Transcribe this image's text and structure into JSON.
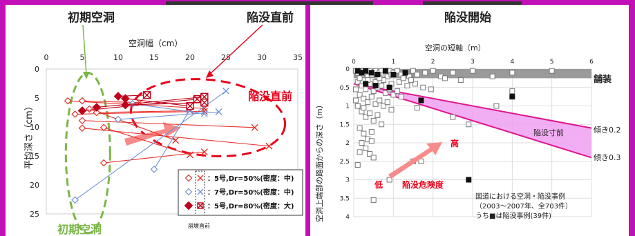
{
  "headings": {
    "left": "初期空洞",
    "center": "陥没直前",
    "right": "陥没開始"
  },
  "chart_data": [
    {
      "type": "scatter",
      "title": "",
      "xlabel": "空洞幅（cm）",
      "ylabel": "平均深さ（cm）",
      "xlim": [
        0,
        35
      ],
      "ylim": [
        0,
        25
      ],
      "y_inverted": true,
      "x_ticks": [
        0,
        5,
        10,
        15,
        20,
        25,
        30,
        35
      ],
      "y_ticks": [
        0,
        5,
        10,
        15,
        20,
        25
      ],
      "legend_position": "bottom-right",
      "legend_note": "崩壊直前",
      "colors": {
        "series1": "#e8302a",
        "series2": "#6f95d8",
        "series3": "#c0001a",
        "initial": "#7ab648",
        "collapse": "#e8001a"
      },
      "series": [
        {
          "name": "：5号,Dr=50%(密度：中)",
          "marker_start": "diamond-open",
          "marker_end": "x",
          "color": "#e8302a",
          "lines": [
            [
              [
                3,
                5.5
              ],
              [
                22,
                6.8
              ]
            ],
            [
              [
                4,
                7.8
              ],
              [
                22,
                7.3
              ]
            ],
            [
              [
                5,
                5.5
              ],
              [
                13,
                5.8
              ]
            ],
            [
              [
                5,
                8.9
              ],
              [
                29,
                10.1
              ]
            ],
            [
              [
                5,
                10.2
              ],
              [
                31,
                13.3
              ]
            ],
            [
              [
                6,
                6.9
              ],
              [
                18,
                12.3
              ]
            ],
            [
              [
                7,
                7.5
              ],
              [
                20,
                7.2
              ]
            ],
            [
              [
                8,
                10.1
              ],
              [
                20,
                14.8
              ]
            ],
            [
              [
                8,
                16.2
              ],
              [
                22,
                14.3
              ]
            ]
          ]
        },
        {
          "name": "：7号,Dr=50%(密度：中)",
          "marker_start": "diamond-open",
          "marker_end": "x",
          "color": "#6f95d8",
          "lines": [
            [
              [
                4,
                22.6
              ],
              [
                25,
                3.8
              ]
            ],
            [
              [
                10,
                8.7
              ],
              [
                24,
                7.4
              ]
            ],
            [
              [
                12,
                6.0
              ],
              [
                22,
                7.7
              ]
            ],
            [
              [
                15,
                17.3
              ],
              [
                20,
                7.0
              ]
            ]
          ]
        },
        {
          "name": "：5号,Dr=80%(密度：大)",
          "marker_start": "diamond-filled",
          "marker_end": "x-box",
          "color": "#c0001a",
          "lines": [
            [
              [
                5,
                7.2
              ],
              [
                21,
                5.2
              ]
            ],
            [
              [
                7,
                6.6
              ],
              [
                22,
                4.8
              ]
            ],
            [
              [
                10,
                4.7
              ],
              [
                14,
                4.5
              ]
            ],
            [
              [
                11,
                5.1
              ],
              [
                20,
                6.4
              ]
            ],
            [
              [
                11,
                6.2
              ],
              [
                22,
                5.8
              ]
            ]
          ]
        }
      ],
      "annotations": [
        {
          "text": "初期空洞",
          "color": "#7ab648"
        },
        {
          "text": "陥没直前",
          "color": "#e8001a"
        }
      ]
    },
    {
      "type": "scatter",
      "title": "",
      "xlabel": "空洞の短軸（m）",
      "ylabel": "空洞上端部の路面からの深さ（m）",
      "xlim": [
        0,
        6
      ],
      "ylim": [
        0,
        4
      ],
      "y_inverted": true,
      "x_ticks": [
        0,
        1,
        2,
        3,
        4,
        5,
        6
      ],
      "y_ticks": [
        0,
        0.5,
        1,
        1.5,
        2,
        2.5,
        3,
        3.5,
        4
      ],
      "y_tick_labels": [
        "0",
        "0.5",
        "1",
        "1.5",
        "2",
        "2.5",
        "3",
        "3.5",
        "4"
      ],
      "pavement_band": {
        "label": "舗装",
        "y0": 0,
        "y1": 0.25,
        "color": "#9a9a9a"
      },
      "collapse_band": {
        "label": "陥没寸前",
        "color": "#f0a0f0",
        "edge_color": "#e0148c",
        "upper_line": {
          "label": "傾き0.2",
          "x": [
            0,
            6
          ],
          "y": [
            0.4,
            1.6
          ]
        },
        "lower_line": {
          "label": "傾き0.3",
          "x": [
            0,
            6
          ],
          "y": [
            0.4,
            2.4
          ]
        }
      },
      "danger_arrow": {
        "low_label": "低",
        "high_label": "高",
        "label": "陥没危険度"
      },
      "legend_text": [
        "国道における空洞・陥没事例",
        "（2003～2007年、全703件）",
        "うち■は陥没事例(39件)"
      ],
      "series": [
        {
          "name": "空洞事例",
          "marker": "square-open",
          "points": [
            [
              0.05,
              0.05
            ],
            [
              0.1,
              0.1
            ],
            [
              0.15,
              0.05
            ],
            [
              0.2,
              0.15
            ],
            [
              0.25,
              0.05
            ],
            [
              0.3,
              0.1
            ],
            [
              0.35,
              0.2
            ],
            [
              0.4,
              0.05
            ],
            [
              0.45,
              0.15
            ],
            [
              0.5,
              0.1
            ],
            [
              0.55,
              0.05
            ],
            [
              0.6,
              0.2
            ],
            [
              0.65,
              0.1
            ],
            [
              0.7,
              0.05
            ],
            [
              0.75,
              0.15
            ],
            [
              0.8,
              0.1
            ],
            [
              0.85,
              0.2
            ],
            [
              0.9,
              0.05
            ],
            [
              0.95,
              0.15
            ],
            [
              1.0,
              0.1
            ],
            [
              1.1,
              0.05
            ],
            [
              1.2,
              0.15
            ],
            [
              1.3,
              0.1
            ],
            [
              1.4,
              0.2
            ],
            [
              1.5,
              0.05
            ],
            [
              1.6,
              0.15
            ],
            [
              1.8,
              0.1
            ],
            [
              2.0,
              0.05
            ],
            [
              2.2,
              0.2
            ],
            [
              2.5,
              0.1
            ],
            [
              3.0,
              0.05
            ],
            [
              4.0,
              0.1
            ],
            [
              5.0,
              0.05
            ],
            [
              0.1,
              0.35
            ],
            [
              0.2,
              0.45
            ],
            [
              0.3,
              0.55
            ],
            [
              0.4,
              0.4
            ],
            [
              0.5,
              0.6
            ],
            [
              0.6,
              0.5
            ],
            [
              0.7,
              0.45
            ],
            [
              0.8,
              0.65
            ],
            [
              0.9,
              0.55
            ],
            [
              1.0,
              0.7
            ],
            [
              1.1,
              0.6
            ],
            [
              1.2,
              0.75
            ],
            [
              0.15,
              0.7
            ],
            [
              0.25,
              0.8
            ],
            [
              0.35,
              0.9
            ],
            [
              0.45,
              0.75
            ],
            [
              0.55,
              0.95
            ],
            [
              0.65,
              0.85
            ],
            [
              0.75,
              1.0
            ],
            [
              0.85,
              0.9
            ],
            [
              0.95,
              1.1
            ],
            [
              0.1,
              1.0
            ],
            [
              0.2,
              1.15
            ],
            [
              0.3,
              1.3
            ],
            [
              0.4,
              1.2
            ],
            [
              0.5,
              1.4
            ],
            [
              0.6,
              1.25
            ],
            [
              0.7,
              1.5
            ],
            [
              0.15,
              1.6
            ],
            [
              0.25,
              1.75
            ],
            [
              0.35,
              1.9
            ],
            [
              0.45,
              1.7
            ],
            [
              0.2,
              2.0
            ],
            [
              0.3,
              2.15
            ],
            [
              0.4,
              2.3
            ],
            [
              0.1,
              2.6
            ],
            [
              0.5,
              2.4
            ],
            [
              1.5,
              2.5
            ],
            [
              1.7,
              2.5
            ],
            [
              0.9,
              3.0
            ],
            [
              0.5,
              3.55
            ],
            [
              1.6,
              1.05
            ],
            [
              2.5,
              1.3
            ],
            [
              2.9,
              1.5
            ],
            [
              3.6,
              1.0
            ],
            [
              4.0,
              0.6
            ],
            [
              0.15,
              0.25
            ],
            [
              0.35,
              0.3
            ],
            [
              0.55,
              0.35
            ],
            [
              0.75,
              0.3
            ],
            [
              0.95,
              0.4
            ],
            [
              1.15,
              0.35
            ],
            [
              1.35,
              0.45
            ],
            [
              1.55,
              0.4
            ],
            [
              1.75,
              0.5
            ],
            [
              1.95,
              0.55
            ],
            [
              0.05,
              0.55
            ],
            [
              0.05,
              0.85
            ],
            [
              0.25,
              1.05
            ],
            [
              0.65,
              0.25
            ],
            [
              1.25,
              0.25
            ],
            [
              1.45,
              0.3
            ],
            [
              2.3,
              0.25
            ],
            [
              2.7,
              0.3
            ],
            [
              3.5,
              0.2
            ],
            [
              0.45,
              1.95
            ],
            [
              0.15,
              2.25
            ]
          ]
        },
        {
          "name": "陥没事例",
          "marker": "square-filled",
          "points": [
            [
              0.1,
              0.05
            ],
            [
              0.2,
              0.1
            ],
            [
              0.3,
              0.05
            ],
            [
              0.45,
              0.1
            ],
            [
              0.6,
              0.15
            ],
            [
              0.8,
              0.05
            ],
            [
              1.0,
              0.15
            ],
            [
              1.3,
              0.1
            ],
            [
              0.3,
              0.4
            ],
            [
              0.55,
              0.45
            ],
            [
              0.9,
              0.5
            ],
            [
              1.7,
              0.85
            ],
            [
              4.0,
              0.75
            ],
            [
              2.9,
              3.0
            ]
          ]
        }
      ]
    }
  ]
}
